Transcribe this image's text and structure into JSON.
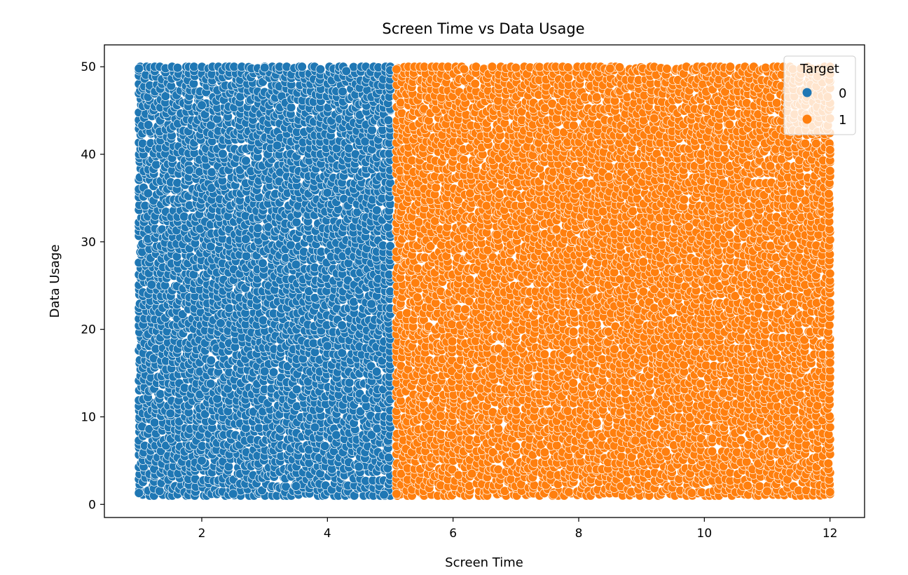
{
  "chart_data": {
    "type": "scatter",
    "title": "Screen Time vs Data Usage",
    "xlabel": "Screen Time",
    "ylabel": "Data Usage",
    "xlim": [
      0.45,
      12.55
    ],
    "ylim": [
      -1.5,
      52.5
    ],
    "xticks": [
      2,
      4,
      6,
      8,
      10,
      12
    ],
    "yticks": [
      0,
      10,
      20,
      30,
      40,
      50
    ],
    "xtick_labels": [
      "2",
      "4",
      "6",
      "8",
      "10",
      "12"
    ],
    "ytick_labels": [
      "0",
      "10",
      "20",
      "30",
      "40",
      "50"
    ],
    "grid": false,
    "legend": {
      "title": "Target",
      "placement": "top-right",
      "entries": [
        "0",
        "1"
      ]
    },
    "series": [
      {
        "name": "0",
        "color": "#1f77b4",
        "x_range": [
          1.0,
          5.0
        ],
        "y_range": [
          1.0,
          50.0
        ],
        "points": [
          [
            1.0,
            1.3
          ],
          [
            1.0,
            49.8
          ],
          [
            1.2,
            25.1
          ],
          [
            1.5,
            10.4
          ],
          [
            1.8,
            38.2
          ],
          [
            2.0,
            5.0
          ],
          [
            2.0,
            45.6
          ],
          [
            2.3,
            20.7
          ],
          [
            2.5,
            1.2
          ],
          [
            2.7,
            30.3
          ],
          [
            3.0,
            49.9
          ],
          [
            3.0,
            15.2
          ],
          [
            3.2,
            41.0
          ],
          [
            3.5,
            2.1
          ],
          [
            3.5,
            27.4
          ],
          [
            3.8,
            8.8
          ],
          [
            4.0,
            35.6
          ],
          [
            4.0,
            18.1
          ],
          [
            4.3,
            49.5
          ],
          [
            4.5,
            4.3
          ],
          [
            4.7,
            22.9
          ],
          [
            4.9,
            1.1
          ],
          [
            5.0,
            49.6
          ],
          [
            5.0,
            12.0
          ]
        ]
      },
      {
        "name": "1",
        "color": "#ff7f0e",
        "x_range": [
          5.1,
          12.0
        ],
        "y_range": [
          1.0,
          50.0
        ],
        "points": [
          [
            5.1,
            1.2
          ],
          [
            5.1,
            49.7
          ],
          [
            5.4,
            25.3
          ],
          [
            5.8,
            10.1
          ],
          [
            6.0,
            40.2
          ],
          [
            6.3,
            3.5
          ],
          [
            6.7,
            30.8
          ],
          [
            7.0,
            49.9
          ],
          [
            7.2,
            15.6
          ],
          [
            7.6,
            1.1
          ],
          [
            8.0,
            36.4
          ],
          [
            8.2,
            20.5
          ],
          [
            8.5,
            49.8
          ],
          [
            8.9,
            7.3
          ],
          [
            9.2,
            44.1
          ],
          [
            9.5,
            27.9
          ],
          [
            9.8,
            1.3
          ],
          [
            10.0,
            49.6
          ],
          [
            10.3,
            12.7
          ],
          [
            10.7,
            33.2
          ],
          [
            11.0,
            1.5
          ],
          [
            11.4,
            22.1
          ],
          [
            11.8,
            48.9
          ],
          [
            12.0,
            1.4
          ],
          [
            12.0,
            40.5
          ],
          [
            12.0,
            16.2
          ]
        ]
      }
    ]
  }
}
